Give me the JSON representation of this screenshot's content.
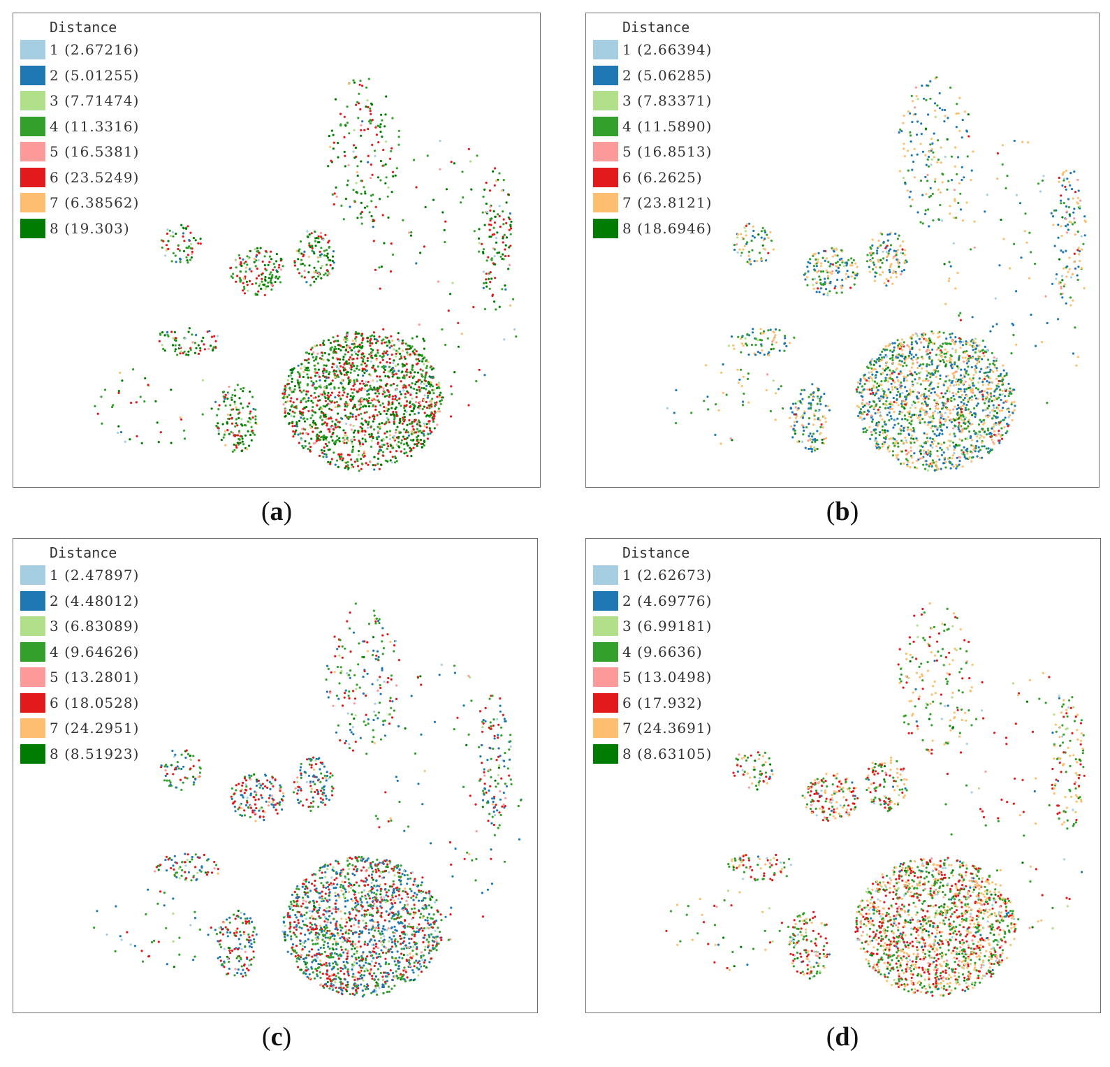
{
  "colors": {
    "class1": "#a6cee3",
    "class2": "#1f78b4",
    "class3": "#b2df8a",
    "class4": "#33a02c",
    "class5": "#fb9a99",
    "class6": "#e31a1c",
    "class7": "#fdbf6f",
    "class8": "#007c00"
  },
  "panels": {
    "a": {
      "caption_open": "(",
      "caption_letter": "a",
      "caption_close": ")",
      "legend_title": "Distance",
      "legend": [
        "1 (2.67216)",
        "2 (5.01255)",
        "3 (7.71474)",
        "4 (11.3316)",
        "5 (16.5381)",
        "6 (23.5249)",
        "7 (6.38562)",
        "8 (19.303)"
      ],
      "dominant_classes": [
        "6",
        "4",
        "8"
      ]
    },
    "b": {
      "caption_open": "(",
      "caption_letter": "b",
      "caption_close": ")",
      "legend_title": "Distance",
      "legend": [
        "1 (2.66394)",
        "2 (5.06285)",
        "3 (7.83371)",
        "4 (11.5890)",
        "5 (16.8513)",
        "6 (6.2625)",
        "7 (23.8121)",
        "8 (18.6946)"
      ],
      "dominant_classes": [
        "4",
        "2",
        "7"
      ]
    },
    "c": {
      "caption_open": "(",
      "caption_letter": "c",
      "caption_close": ")",
      "legend_title": "Distance",
      "legend": [
        "1 (2.47897)",
        "2 (4.48012)",
        "3 (6.83089)",
        "4 (9.64626)",
        "5 (13.2801)",
        "6 (18.0528)",
        "7 (24.2951)",
        "8 (8.51923)"
      ],
      "dominant_classes": [
        "4",
        "6",
        "2"
      ]
    },
    "d": {
      "caption_open": "(",
      "caption_letter": "d",
      "caption_close": ")",
      "legend_title": "Distance",
      "legend": [
        "1 (2.62673)",
        "2 (4.69776)",
        "3 (6.99181)",
        "4 (9.6636)",
        "5 (13.0498)",
        "6 (17.932)",
        "7 (24.3691)",
        "8 (8.63105)"
      ],
      "dominant_classes": [
        "4",
        "6",
        "7"
      ]
    }
  }
}
